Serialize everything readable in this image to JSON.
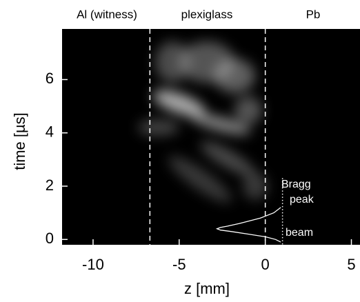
{
  "chart_data": {
    "type": "image",
    "xlabel": "z [mm]",
    "ylabel": "time [µs]",
    "xlim": [
      -11.8,
      5.5
    ],
    "ylim": [
      -0.2,
      7.9
    ],
    "xticks": [
      -10,
      -5,
      0,
      5
    ],
    "yticks": [
      0,
      2,
      4,
      6
    ],
    "regions": [
      "Al (witness)",
      "plexiglass",
      "Pb"
    ],
    "annotations": [
      "Bragg",
      "peak",
      "beam"
    ],
    "vlines": [
      {
        "x": -6.7,
        "style": "dashed"
      },
      {
        "x": 0,
        "style": "dashed"
      },
      {
        "x": 1,
        "style": "dotted",
        "top": 2.3
      }
    ],
    "beam_profile": {
      "t": [
        1.2,
        1.0,
        0.8,
        0.6,
        0.5,
        0.45,
        0.4,
        0.35,
        0.3,
        0.2,
        0.1,
        0.0,
        -0.1
      ],
      "z": [
        0.9,
        0.5,
        -0.3,
        -1.5,
        -2.2,
        -2.6,
        -2.8,
        -2.6,
        -2.0,
        -1.0,
        0.0,
        0.6,
        0.9
      ]
    },
    "background": "#000000",
    "line_color": "#ffffff"
  }
}
